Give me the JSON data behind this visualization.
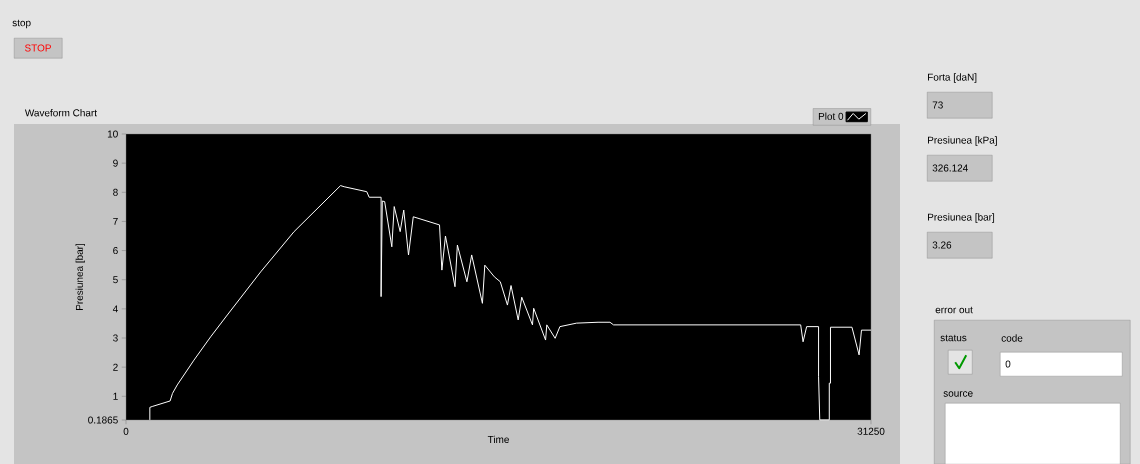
{
  "chart_data": {
    "type": "line",
    "title": "Waveform Chart",
    "xlabel": "Time",
    "ylabel": "Presiunea [bar]",
    "xlim": [
      0,
      31250
    ],
    "xticks": [
      0,
      31250
    ],
    "ylim": [
      0.1865,
      10
    ],
    "yticks": [
      0.1865,
      1,
      2,
      3,
      4,
      5,
      6,
      7,
      8,
      9,
      10
    ],
    "legend": "top right",
    "marker": "none",
    "line_style": "solid",
    "series": [
      {
        "name": "Plot 0",
        "color": "#ffffff",
        "x": [
          1000,
          1000,
          1100,
          1850,
          1950,
          2150,
          2850,
          3550,
          4250,
          5650,
          7050,
          9000,
          9150,
          10100,
          10200,
          10700,
          10700,
          10750,
          10850,
          11150,
          11250,
          11500,
          11650,
          11850,
          12050,
          13150,
          13250,
          13400,
          13800,
          13900,
          14300,
          14500,
          14950,
          15050,
          15450,
          15700,
          16000,
          16150,
          16450,
          16600,
          17050,
          17100,
          17600,
          17650,
          18000,
          18200,
          18900,
          19800,
          20300,
          20450,
          28300,
          28400,
          28550,
          29050,
          29050,
          29100,
          29500,
          29500,
          29550,
          29550,
          30450,
          30750,
          30850,
          31250
        ],
        "values": [
          0.19,
          0.62,
          0.65,
          0.84,
          1.1,
          1.39,
          2.24,
          3.04,
          3.79,
          5.27,
          6.65,
          8.23,
          8.19,
          8.02,
          7.83,
          7.83,
          4.42,
          7.7,
          7.68,
          6.13,
          7.51,
          6.65,
          7.39,
          5.85,
          7.16,
          6.88,
          5.33,
          6.5,
          4.76,
          6.19,
          4.93,
          5.85,
          4.19,
          5.5,
          5.1,
          4.93,
          4.13,
          4.8,
          3.62,
          4.4,
          3.45,
          4.02,
          2.93,
          3.45,
          2.99,
          3.39,
          3.51,
          3.54,
          3.54,
          3.45,
          3.45,
          2.87,
          3.39,
          3.39,
          1.67,
          0.19,
          0.19,
          1.45,
          1.45,
          3.37,
          3.37,
          2.42,
          3.27,
          3.27
        ]
      }
    ],
    "annotations": [
      "stop",
      "STOP",
      "Forta [daN]",
      "73",
      "Presiunea [kPa]",
      "326.124",
      "Presiunea [bar]",
      "3.26",
      "error out",
      "status",
      "code",
      "0",
      "source"
    ]
  }
}
